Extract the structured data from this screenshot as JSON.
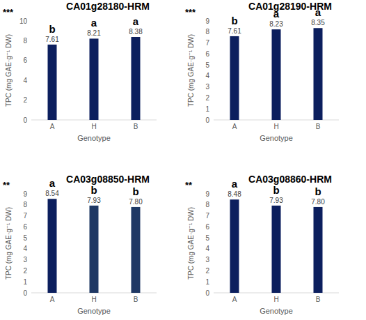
{
  "chart_data": [
    {
      "type": "bar",
      "title": "CA01g28180-HRM",
      "annotation": "***",
      "x_label": "Genotype",
      "y_label": "TPC (mg GAE·g⁻¹ DW)",
      "categories": [
        "A",
        "H",
        "B"
      ],
      "values": [
        7.61,
        8.21,
        8.38
      ],
      "value_labels": [
        "7.61",
        "8.21",
        "8.38"
      ],
      "letters": [
        "b",
        "a",
        "a"
      ],
      "color": "#0c1f5e",
      "ylim": [
        0,
        10
      ],
      "yticks": [
        0,
        2,
        4,
        6,
        8,
        10
      ],
      "grid": false,
      "data_labels": true
    },
    {
      "type": "bar",
      "title": "CA01g28190-HRM",
      "annotation": "***",
      "x_label": "Genotype",
      "y_label": "TPC (mg GAE·g⁻¹ DW)",
      "categories": [
        "A",
        "H",
        "B"
      ],
      "values": [
        7.61,
        8.23,
        8.35
      ],
      "value_labels": [
        "7.61",
        "8.23",
        "8.35"
      ],
      "letters": [
        "b",
        "a",
        "a"
      ],
      "color": "#0c1f5e",
      "ylim": [
        0,
        9
      ],
      "yticks": [
        0,
        1,
        2,
        3,
        4,
        5,
        6,
        7,
        8,
        9
      ],
      "grid": false,
      "data_labels": true
    },
    {
      "type": "bar",
      "title": "CA03g08850-HRM",
      "annotation": "**",
      "x_label": "Genotype",
      "y_label": "TPC (mg GAE·g⁻¹ DW)",
      "categories": [
        "A",
        "H",
        "B"
      ],
      "values": [
        8.54,
        7.93,
        7.8
      ],
      "value_labels": [
        "8.54",
        "7.93",
        "7.80"
      ],
      "letters": [
        "a",
        "b",
        "b"
      ],
      "colors": [
        "#0c1f5e",
        "#1f3864",
        "#1f3864"
      ],
      "ylim": [
        0,
        9
      ],
      "yticks": [
        0,
        1,
        2,
        3,
        4,
        5,
        6,
        7,
        8,
        9
      ],
      "grid": false,
      "data_labels": true
    },
    {
      "type": "bar",
      "title": "CA03g08860-HRM",
      "annotation": "**",
      "x_label": "Genotype",
      "y_label": "TPC (mg GAE·g⁻¹ DW)",
      "categories": [
        "A",
        "H",
        "B"
      ],
      "values": [
        8.48,
        7.93,
        7.8
      ],
      "value_labels": [
        "8.48",
        "7.93",
        "7.80"
      ],
      "letters": [
        "a",
        "b",
        "b"
      ],
      "color": "#0c1f5e",
      "ylim": [
        0,
        9
      ],
      "yticks": [
        0,
        1,
        2,
        3,
        4,
        5,
        6,
        7,
        8,
        9
      ],
      "grid": false,
      "data_labels": true
    }
  ]
}
